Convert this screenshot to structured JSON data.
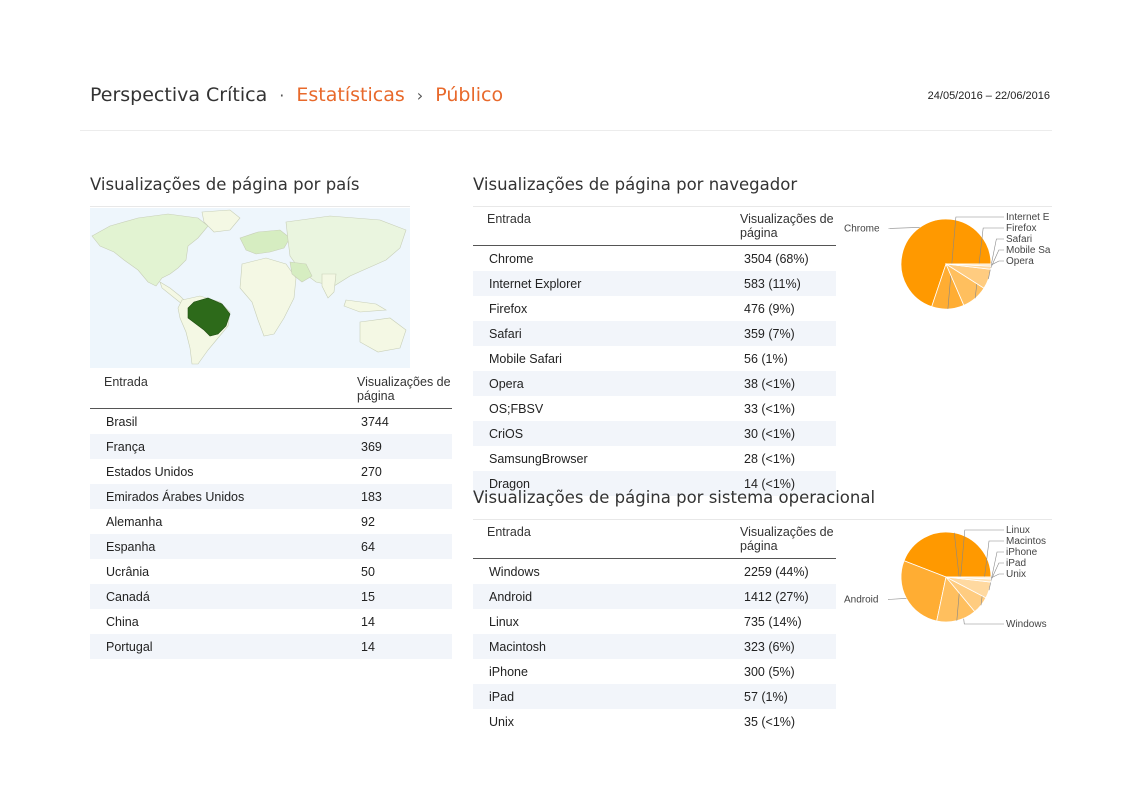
{
  "header": {
    "blog_name": "Perspectiva Crítica",
    "sep1": "·",
    "crumb1": "Estatísticas",
    "sep2": "›",
    "crumb2": "Público",
    "date_range": "24/05/2016 – 22/06/2016"
  },
  "country": {
    "title": "Visualizações de página por país",
    "col_entry": "Entrada",
    "col_views": "Visualizações de página",
    "rows": [
      {
        "name": "Brasil",
        "value": "3744"
      },
      {
        "name": "França",
        "value": "369"
      },
      {
        "name": "Estados Unidos",
        "value": "270"
      },
      {
        "name": "Emirados Árabes Unidos",
        "value": "183"
      },
      {
        "name": "Alemanha",
        "value": "92"
      },
      {
        "name": "Espanha",
        "value": "64"
      },
      {
        "name": "Ucrânia",
        "value": "50"
      },
      {
        "name": "Canadá",
        "value": "15"
      },
      {
        "name": "China",
        "value": "14"
      },
      {
        "name": "Portugal",
        "value": "14"
      }
    ]
  },
  "browser": {
    "title": "Visualizações de página por navegador",
    "col_entry": "Entrada",
    "col_views": "Visualizações de página",
    "rows": [
      {
        "name": "Chrome",
        "value": "3504 (68%)"
      },
      {
        "name": "Internet Explorer",
        "value": "583 (11%)"
      },
      {
        "name": "Firefox",
        "value": "476 (9%)"
      },
      {
        "name": "Safari",
        "value": "359 (7%)"
      },
      {
        "name": "Mobile Safari",
        "value": "56 (1%)"
      },
      {
        "name": "Opera",
        "value": "38 (<1%)"
      },
      {
        "name": "OS;FBSV",
        "value": "33 (<1%)"
      },
      {
        "name": "CriOS",
        "value": "30 (<1%)"
      },
      {
        "name": "SamsungBrowser",
        "value": "28 (<1%)"
      },
      {
        "name": "Dragon",
        "value": "14 (<1%)"
      }
    ],
    "pie": {
      "labels": [
        "Chrome",
        "Internet E",
        "Firefox",
        "Safari",
        "Mobile Sa",
        "Opera"
      ],
      "values": [
        3504,
        583,
        476,
        359,
        56,
        38
      ]
    }
  },
  "os": {
    "title": "Visualizações de página por sistema operacional",
    "col_entry": "Entrada",
    "col_views": "Visualizações de página",
    "rows": [
      {
        "name": "Windows",
        "value": "2259 (44%)"
      },
      {
        "name": "Android",
        "value": "1412 (27%)"
      },
      {
        "name": "Linux",
        "value": "735 (14%)"
      },
      {
        "name": "Macintosh",
        "value": "323 (6%)"
      },
      {
        "name": "iPhone",
        "value": "300 (5%)"
      },
      {
        "name": "iPad",
        "value": "57 (1%)"
      },
      {
        "name": "Unix",
        "value": "35 (<1%)"
      }
    ],
    "pie": {
      "labels": [
        "Windows",
        "Android",
        "Linux",
        "Macintos",
        "iPhone",
        "iPad",
        "Unix"
      ],
      "values": [
        2259,
        1412,
        735,
        323,
        300,
        57,
        35
      ]
    }
  },
  "colors": {
    "accent": "#e8692b",
    "pie_main": "#ff9900",
    "map_highlight": "#2d6a1a",
    "map_land": "#f4f8e4",
    "map_water": "#eef6fc"
  }
}
